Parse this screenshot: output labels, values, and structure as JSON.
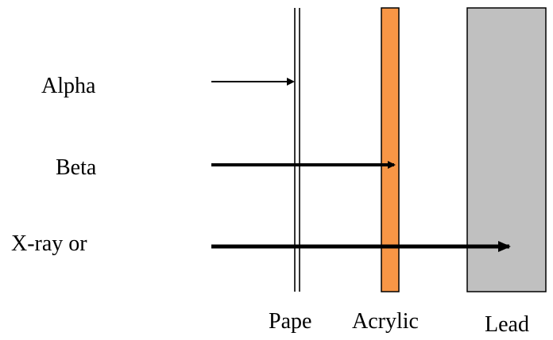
{
  "radiations": [
    {
      "label": "Alpha",
      "stops_at": "paper"
    },
    {
      "label": "Beta",
      "stops_at": "acrylic"
    },
    {
      "label": "X-ray or",
      "stops_at": "lead"
    }
  ],
  "barriers": [
    {
      "id": "paper",
      "label": "Pape",
      "fill": "#ffffff",
      "stroke": "#000000"
    },
    {
      "id": "acrylic",
      "label": "Acrylic",
      "fill": "#f79646",
      "stroke": "#000000"
    },
    {
      "id": "lead",
      "label": "Lead",
      "fill": "#c0c0c0",
      "stroke": "#000000"
    }
  ],
  "colors": {
    "arrow": "#000000"
  }
}
